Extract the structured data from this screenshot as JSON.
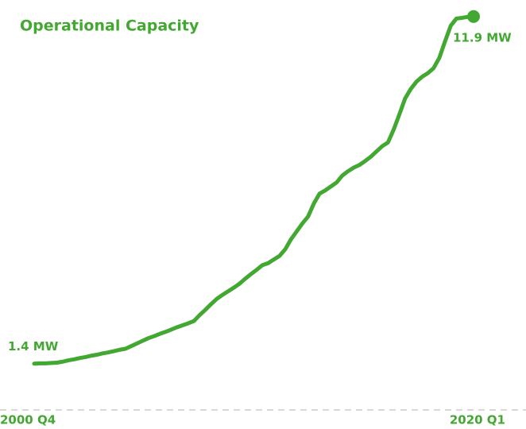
{
  "chart_data": {
    "type": "line",
    "title": "Operational Capacity",
    "categories": [
      "2000 Q4",
      null,
      null,
      null,
      null,
      null,
      null,
      null,
      null,
      null,
      null,
      null,
      null,
      null,
      null,
      null,
      null,
      null,
      null,
      null,
      null,
      null,
      null,
      null,
      null,
      null,
      null,
      null,
      null,
      null,
      null,
      null,
      null,
      null,
      null,
      null,
      null,
      null,
      null,
      null,
      null,
      null,
      null,
      null,
      null,
      null,
      null,
      null,
      null,
      null,
      null,
      null,
      null,
      null,
      null,
      null,
      null,
      null,
      null,
      null,
      null,
      null,
      null,
      null,
      null,
      null,
      null,
      null,
      null,
      null,
      null,
      null,
      null,
      null,
      null,
      null,
      null,
      "2020 Q1"
    ],
    "values": [
      1.4,
      1.41,
      1.41,
      1.42,
      1.43,
      1.46,
      1.5,
      1.53,
      1.57,
      1.6,
      1.64,
      1.67,
      1.71,
      1.74,
      1.78,
      1.82,
      1.85,
      1.93,
      2.01,
      2.09,
      2.17,
      2.23,
      2.3,
      2.36,
      2.43,
      2.5,
      2.56,
      2.62,
      2.69,
      2.87,
      3.03,
      3.2,
      3.36,
      3.48,
      3.59,
      3.7,
      3.82,
      3.97,
      4.11,
      4.24,
      4.38,
      4.44,
      4.55,
      4.66,
      4.86,
      5.16,
      5.4,
      5.64,
      5.85,
      6.24,
      6.54,
      6.64,
      6.76,
      6.88,
      7.09,
      7.22,
      7.33,
      7.41,
      7.53,
      7.66,
      7.82,
      7.98,
      8.09,
      8.48,
      8.94,
      9.42,
      9.71,
      9.93,
      10.08,
      10.19,
      10.34,
      10.65,
      11.15,
      11.62,
      11.84,
      11.86,
      11.89,
      11.9
    ],
    "value_labels": [
      "1.4 MW",
      null,
      null,
      null,
      null,
      null,
      null,
      null,
      null,
      null,
      null,
      null,
      null,
      null,
      null,
      null,
      null,
      null,
      null,
      null,
      null,
      null,
      null,
      null,
      null,
      null,
      null,
      null,
      null,
      null,
      null,
      null,
      null,
      null,
      null,
      null,
      null,
      null,
      null,
      null,
      null,
      null,
      null,
      null,
      null,
      null,
      null,
      null,
      null,
      null,
      null,
      null,
      null,
      null,
      null,
      null,
      null,
      null,
      null,
      null,
      null,
      null,
      null,
      null,
      null,
      null,
      null,
      null,
      null,
      null,
      null,
      null,
      null,
      null,
      null,
      null,
      null,
      "11.9 MW"
    ],
    "color": "#43a832",
    "ylim": [
      0,
      12.4
    ]
  }
}
